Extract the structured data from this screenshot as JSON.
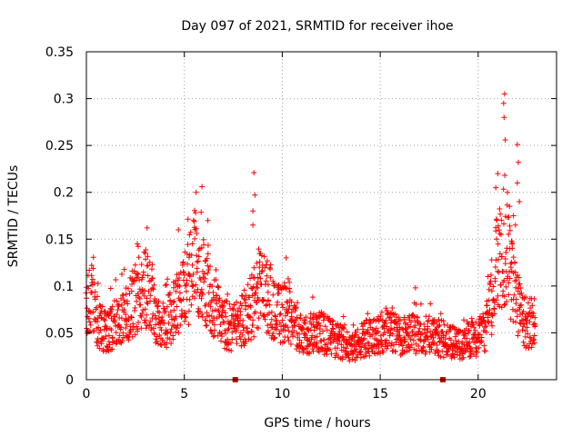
{
  "chart_data": {
    "type": "scatter",
    "title": "Day 097 of 2021, SRMTID for receiver ihoe",
    "xlabel": "GPS time / hours",
    "ylabel": "SRMTID / TECUs",
    "xlim": [
      0,
      24
    ],
    "ylim": [
      0,
      0.35
    ],
    "xticks": [
      0,
      5,
      10,
      15,
      20
    ],
    "xtick_labels": [
      "0",
      "5",
      "10",
      "15",
      "20"
    ],
    "yticks": [
      0,
      0.05,
      0.1,
      0.15,
      0.2,
      0.25,
      0.3,
      0.35
    ],
    "ytick_labels": [
      "0",
      "0.05",
      "0.1",
      "0.15",
      "0.2",
      "0.25",
      "0.3",
      "0.35"
    ],
    "grid": true,
    "marker": "plus",
    "series_color": "#ff0000",
    "marker_color": "#d40000",
    "axis_color": "#000000",
    "grid_color": "#a0a0a0",
    "baseline_markers": [
      {
        "x": 7.6,
        "y": 0
      },
      {
        "x": 18.2,
        "y": 0
      }
    ],
    "series": [
      {
        "name": "SRMTID",
        "x_start": 0.0,
        "x_end": 22.9,
        "x_step": 0.05,
        "profile": [
          [
            0.0,
            0.075
          ],
          [
            0.3,
            0.09
          ],
          [
            0.6,
            0.058
          ],
          [
            1.0,
            0.05
          ],
          [
            1.5,
            0.06
          ],
          [
            2.0,
            0.07
          ],
          [
            2.5,
            0.085
          ],
          [
            3.0,
            0.1
          ],
          [
            3.3,
            0.09
          ],
          [
            3.6,
            0.062
          ],
          [
            4.0,
            0.055
          ],
          [
            4.5,
            0.075
          ],
          [
            5.0,
            0.095
          ],
          [
            5.5,
            0.125
          ],
          [
            6.0,
            0.105
          ],
          [
            6.5,
            0.08
          ],
          [
            7.0,
            0.06
          ],
          [
            7.5,
            0.055
          ],
          [
            8.0,
            0.065
          ],
          [
            8.5,
            0.08
          ],
          [
            8.8,
            0.095
          ],
          [
            9.2,
            0.09
          ],
          [
            9.6,
            0.075
          ],
          [
            10.0,
            0.07
          ],
          [
            10.3,
            0.075
          ],
          [
            10.6,
            0.055
          ],
          [
            11.0,
            0.048
          ],
          [
            12.0,
            0.05
          ],
          [
            13.0,
            0.04
          ],
          [
            13.5,
            0.032
          ],
          [
            14.0,
            0.042
          ],
          [
            15.0,
            0.05
          ],
          [
            15.5,
            0.055
          ],
          [
            16.0,
            0.045
          ],
          [
            17.0,
            0.05
          ],
          [
            18.0,
            0.045
          ],
          [
            19.0,
            0.038
          ],
          [
            19.5,
            0.042
          ],
          [
            20.0,
            0.045
          ],
          [
            20.5,
            0.06
          ],
          [
            20.8,
            0.1
          ],
          [
            21.0,
            0.125
          ],
          [
            21.3,
            0.145
          ],
          [
            21.5,
            0.13
          ],
          [
            21.8,
            0.1
          ],
          [
            22.2,
            0.07
          ],
          [
            22.5,
            0.06
          ],
          [
            22.9,
            0.06
          ]
        ],
        "peaks": [
          {
            "x": 5.6,
            "y": 0.2
          },
          {
            "x": 5.9,
            "y": 0.206
          },
          {
            "x": 6.2,
            "y": 0.17
          },
          {
            "x": 8.55,
            "y": 0.221
          },
          {
            "x": 8.6,
            "y": 0.197
          },
          {
            "x": 8.5,
            "y": 0.18
          },
          {
            "x": 8.5,
            "y": 0.165
          },
          {
            "x": 3.1,
            "y": 0.162
          },
          {
            "x": 2.6,
            "y": 0.145
          },
          {
            "x": 4.7,
            "y": 0.16
          },
          {
            "x": 10.2,
            "y": 0.13
          },
          {
            "x": 16.8,
            "y": 0.098
          },
          {
            "x": 20.5,
            "y": 0.11
          },
          {
            "x": 21.0,
            "y": 0.22
          },
          {
            "x": 20.9,
            "y": 0.205
          },
          {
            "x": 21.35,
            "y": 0.305
          },
          {
            "x": 21.3,
            "y": 0.295
          },
          {
            "x": 21.32,
            "y": 0.28
          },
          {
            "x": 21.38,
            "y": 0.256
          },
          {
            "x": 21.5,
            "y": 0.2
          },
          {
            "x": 21.6,
            "y": 0.185
          },
          {
            "x": 21.8,
            "y": 0.175
          },
          {
            "x": 22.0,
            "y": 0.251
          },
          {
            "x": 22.05,
            "y": 0.232
          },
          {
            "x": 22.0,
            "y": 0.21
          },
          {
            "x": 22.1,
            "y": 0.19
          },
          {
            "x": 21.9,
            "y": 0.165
          }
        ]
      }
    ]
  }
}
